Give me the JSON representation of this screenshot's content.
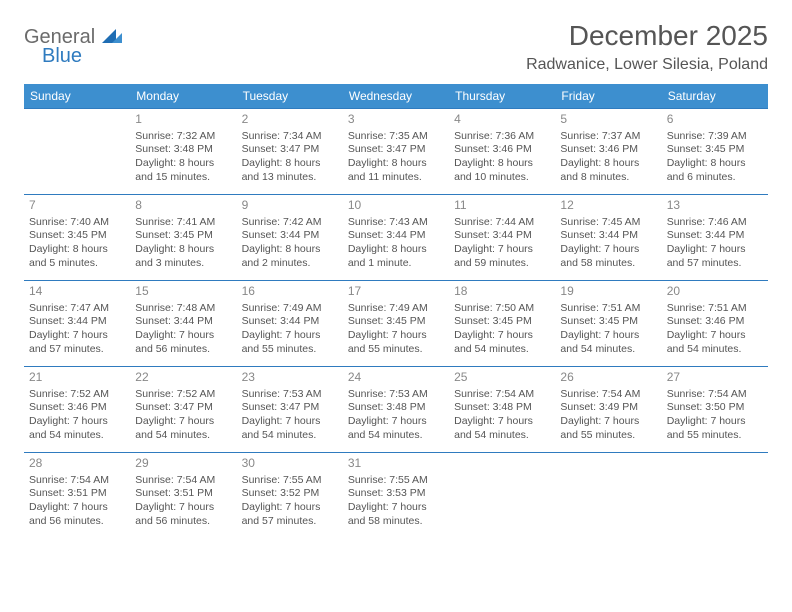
{
  "logo": {
    "text1": "General",
    "text2": "Blue"
  },
  "title": "December 2025",
  "location": "Radwanice, Lower Silesia, Poland",
  "colors": {
    "header_bg": "#3d8fcf",
    "header_text": "#ffffff",
    "border": "#2f7bbf",
    "text": "#555555",
    "daynum": "#888888",
    "logo_gray": "#6b6b6b",
    "logo_blue": "#2f7bbf"
  },
  "typography": {
    "title_fontsize": 28,
    "location_fontsize": 16,
    "dayheader_fontsize": 12,
    "cell_fontsize": 10.5
  },
  "day_labels": [
    "Sunday",
    "Monday",
    "Tuesday",
    "Wednesday",
    "Thursday",
    "Friday",
    "Saturday"
  ],
  "weeks": [
    [
      null,
      {
        "num": "1",
        "sunrise": "Sunrise: 7:32 AM",
        "sunset": "Sunset: 3:48 PM",
        "daylight1": "Daylight: 8 hours",
        "daylight2": "and 15 minutes."
      },
      {
        "num": "2",
        "sunrise": "Sunrise: 7:34 AM",
        "sunset": "Sunset: 3:47 PM",
        "daylight1": "Daylight: 8 hours",
        "daylight2": "and 13 minutes."
      },
      {
        "num": "3",
        "sunrise": "Sunrise: 7:35 AM",
        "sunset": "Sunset: 3:47 PM",
        "daylight1": "Daylight: 8 hours",
        "daylight2": "and 11 minutes."
      },
      {
        "num": "4",
        "sunrise": "Sunrise: 7:36 AM",
        "sunset": "Sunset: 3:46 PM",
        "daylight1": "Daylight: 8 hours",
        "daylight2": "and 10 minutes."
      },
      {
        "num": "5",
        "sunrise": "Sunrise: 7:37 AM",
        "sunset": "Sunset: 3:46 PM",
        "daylight1": "Daylight: 8 hours",
        "daylight2": "and 8 minutes."
      },
      {
        "num": "6",
        "sunrise": "Sunrise: 7:39 AM",
        "sunset": "Sunset: 3:45 PM",
        "daylight1": "Daylight: 8 hours",
        "daylight2": "and 6 minutes."
      }
    ],
    [
      {
        "num": "7",
        "sunrise": "Sunrise: 7:40 AM",
        "sunset": "Sunset: 3:45 PM",
        "daylight1": "Daylight: 8 hours",
        "daylight2": "and 5 minutes."
      },
      {
        "num": "8",
        "sunrise": "Sunrise: 7:41 AM",
        "sunset": "Sunset: 3:45 PM",
        "daylight1": "Daylight: 8 hours",
        "daylight2": "and 3 minutes."
      },
      {
        "num": "9",
        "sunrise": "Sunrise: 7:42 AM",
        "sunset": "Sunset: 3:44 PM",
        "daylight1": "Daylight: 8 hours",
        "daylight2": "and 2 minutes."
      },
      {
        "num": "10",
        "sunrise": "Sunrise: 7:43 AM",
        "sunset": "Sunset: 3:44 PM",
        "daylight1": "Daylight: 8 hours",
        "daylight2": "and 1 minute."
      },
      {
        "num": "11",
        "sunrise": "Sunrise: 7:44 AM",
        "sunset": "Sunset: 3:44 PM",
        "daylight1": "Daylight: 7 hours",
        "daylight2": "and 59 minutes."
      },
      {
        "num": "12",
        "sunrise": "Sunrise: 7:45 AM",
        "sunset": "Sunset: 3:44 PM",
        "daylight1": "Daylight: 7 hours",
        "daylight2": "and 58 minutes."
      },
      {
        "num": "13",
        "sunrise": "Sunrise: 7:46 AM",
        "sunset": "Sunset: 3:44 PM",
        "daylight1": "Daylight: 7 hours",
        "daylight2": "and 57 minutes."
      }
    ],
    [
      {
        "num": "14",
        "sunrise": "Sunrise: 7:47 AM",
        "sunset": "Sunset: 3:44 PM",
        "daylight1": "Daylight: 7 hours",
        "daylight2": "and 57 minutes."
      },
      {
        "num": "15",
        "sunrise": "Sunrise: 7:48 AM",
        "sunset": "Sunset: 3:44 PM",
        "daylight1": "Daylight: 7 hours",
        "daylight2": "and 56 minutes."
      },
      {
        "num": "16",
        "sunrise": "Sunrise: 7:49 AM",
        "sunset": "Sunset: 3:44 PM",
        "daylight1": "Daylight: 7 hours",
        "daylight2": "and 55 minutes."
      },
      {
        "num": "17",
        "sunrise": "Sunrise: 7:49 AM",
        "sunset": "Sunset: 3:45 PM",
        "daylight1": "Daylight: 7 hours",
        "daylight2": "and 55 minutes."
      },
      {
        "num": "18",
        "sunrise": "Sunrise: 7:50 AM",
        "sunset": "Sunset: 3:45 PM",
        "daylight1": "Daylight: 7 hours",
        "daylight2": "and 54 minutes."
      },
      {
        "num": "19",
        "sunrise": "Sunrise: 7:51 AM",
        "sunset": "Sunset: 3:45 PM",
        "daylight1": "Daylight: 7 hours",
        "daylight2": "and 54 minutes."
      },
      {
        "num": "20",
        "sunrise": "Sunrise: 7:51 AM",
        "sunset": "Sunset: 3:46 PM",
        "daylight1": "Daylight: 7 hours",
        "daylight2": "and 54 minutes."
      }
    ],
    [
      {
        "num": "21",
        "sunrise": "Sunrise: 7:52 AM",
        "sunset": "Sunset: 3:46 PM",
        "daylight1": "Daylight: 7 hours",
        "daylight2": "and 54 minutes."
      },
      {
        "num": "22",
        "sunrise": "Sunrise: 7:52 AM",
        "sunset": "Sunset: 3:47 PM",
        "daylight1": "Daylight: 7 hours",
        "daylight2": "and 54 minutes."
      },
      {
        "num": "23",
        "sunrise": "Sunrise: 7:53 AM",
        "sunset": "Sunset: 3:47 PM",
        "daylight1": "Daylight: 7 hours",
        "daylight2": "and 54 minutes."
      },
      {
        "num": "24",
        "sunrise": "Sunrise: 7:53 AM",
        "sunset": "Sunset: 3:48 PM",
        "daylight1": "Daylight: 7 hours",
        "daylight2": "and 54 minutes."
      },
      {
        "num": "25",
        "sunrise": "Sunrise: 7:54 AM",
        "sunset": "Sunset: 3:48 PM",
        "daylight1": "Daylight: 7 hours",
        "daylight2": "and 54 minutes."
      },
      {
        "num": "26",
        "sunrise": "Sunrise: 7:54 AM",
        "sunset": "Sunset: 3:49 PM",
        "daylight1": "Daylight: 7 hours",
        "daylight2": "and 55 minutes."
      },
      {
        "num": "27",
        "sunrise": "Sunrise: 7:54 AM",
        "sunset": "Sunset: 3:50 PM",
        "daylight1": "Daylight: 7 hours",
        "daylight2": "and 55 minutes."
      }
    ],
    [
      {
        "num": "28",
        "sunrise": "Sunrise: 7:54 AM",
        "sunset": "Sunset: 3:51 PM",
        "daylight1": "Daylight: 7 hours",
        "daylight2": "and 56 minutes."
      },
      {
        "num": "29",
        "sunrise": "Sunrise: 7:54 AM",
        "sunset": "Sunset: 3:51 PM",
        "daylight1": "Daylight: 7 hours",
        "daylight2": "and 56 minutes."
      },
      {
        "num": "30",
        "sunrise": "Sunrise: 7:55 AM",
        "sunset": "Sunset: 3:52 PM",
        "daylight1": "Daylight: 7 hours",
        "daylight2": "and 57 minutes."
      },
      {
        "num": "31",
        "sunrise": "Sunrise: 7:55 AM",
        "sunset": "Sunset: 3:53 PM",
        "daylight1": "Daylight: 7 hours",
        "daylight2": "and 58 minutes."
      },
      null,
      null,
      null
    ]
  ]
}
